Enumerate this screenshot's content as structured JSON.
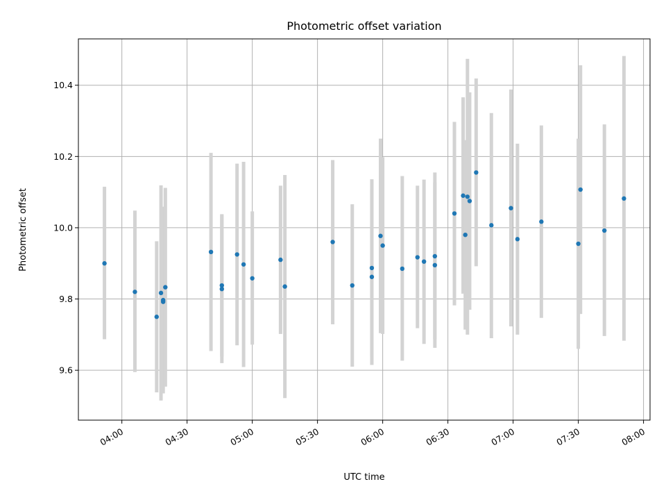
{
  "chart_data": {
    "type": "scatter",
    "title": "Photometric offset variation",
    "xlabel": "UTC time",
    "ylabel": "Photometric offset",
    "x_axis": {
      "kind": "time",
      "range": [
        "03:40",
        "08:03"
      ],
      "ticks": [
        "04:00",
        "04:30",
        "05:00",
        "05:30",
        "06:00",
        "06:30",
        "07:00",
        "07:30",
        "08:00"
      ]
    },
    "y_axis": {
      "range": [
        9.46,
        10.53
      ],
      "ticks": [
        9.6,
        9.8,
        10.0,
        10.2,
        10.4
      ],
      "tick_labels": [
        "9.6",
        "9.8",
        "10.0",
        "10.2",
        "10.4"
      ]
    },
    "grid": true,
    "marker_color": "#1f77b4",
    "errorbar_color": "#d3d3d3",
    "series": [
      {
        "points": [
          {
            "x": "03:52",
            "y": 9.9,
            "low": 9.687,
            "high": 10.115
          },
          {
            "x": "04:06",
            "y": 9.82,
            "low": 9.595,
            "high": 10.048
          },
          {
            "x": "04:16",
            "y": 9.75,
            "low": 9.538,
            "high": 9.962
          },
          {
            "x": "04:18",
            "y": 9.817,
            "low": 9.515,
            "high": 10.119
          },
          {
            "x": "04:19",
            "y": 9.797,
            "low": 9.535,
            "high": 10.059
          },
          {
            "x": "04:19",
            "y": 9.792,
            "low": 9.585,
            "high": 10.002
          },
          {
            "x": "04:20",
            "y": 9.833,
            "low": 9.554,
            "high": 10.112
          },
          {
            "x": "04:41",
            "y": 9.932,
            "low": 9.654,
            "high": 10.21
          },
          {
            "x": "04:46",
            "y": 9.838,
            "low": 9.638,
            "high": 10.038
          },
          {
            "x": "04:46",
            "y": 9.828,
            "low": 9.62,
            "high": 10.036
          },
          {
            "x": "04:53",
            "y": 9.925,
            "low": 9.67,
            "high": 10.18
          },
          {
            "x": "04:56",
            "y": 9.897,
            "low": 9.609,
            "high": 10.185
          },
          {
            "x": "05:00",
            "y": 9.858,
            "low": 9.672,
            "high": 10.046
          },
          {
            "x": "05:13",
            "y": 9.91,
            "low": 9.702,
            "high": 10.118
          },
          {
            "x": "05:15",
            "y": 9.835,
            "low": 9.522,
            "high": 10.148
          },
          {
            "x": "05:37",
            "y": 9.96,
            "low": 9.729,
            "high": 10.19
          },
          {
            "x": "05:46",
            "y": 9.838,
            "low": 9.61,
            "high": 10.066
          },
          {
            "x": "05:55",
            "y": 9.862,
            "low": 9.615,
            "high": 10.108
          },
          {
            "x": "05:55",
            "y": 9.887,
            "low": 9.638,
            "high": 10.136
          },
          {
            "x": "05:59",
            "y": 9.977,
            "low": 9.704,
            "high": 10.25
          },
          {
            "x": "06:00",
            "y": 9.95,
            "low": 9.702,
            "high": 10.198
          },
          {
            "x": "06:09",
            "y": 9.885,
            "low": 9.627,
            "high": 10.145
          },
          {
            "x": "06:16",
            "y": 9.917,
            "low": 9.718,
            "high": 10.118
          },
          {
            "x": "06:19",
            "y": 9.905,
            "low": 9.674,
            "high": 10.135
          },
          {
            "x": "06:24",
            "y": 9.92,
            "low": 9.687,
            "high": 10.155
          },
          {
            "x": "06:24",
            "y": 9.895,
            "low": 9.663,
            "high": 10.127
          },
          {
            "x": "06:33",
            "y": 10.04,
            "low": 9.782,
            "high": 10.297
          },
          {
            "x": "06:37",
            "y": 10.09,
            "low": 9.815,
            "high": 10.366
          },
          {
            "x": "06:38",
            "y": 9.98,
            "low": 9.714,
            "high": 10.246
          },
          {
            "x": "06:39",
            "y": 10.087,
            "low": 9.7,
            "high": 10.474
          },
          {
            "x": "06:40",
            "y": 10.075,
            "low": 9.77,
            "high": 10.38
          },
          {
            "x": "06:43",
            "y": 10.155,
            "low": 9.892,
            "high": 10.419
          },
          {
            "x": "06:50",
            "y": 10.007,
            "low": 9.69,
            "high": 10.322
          },
          {
            "x": "06:59",
            "y": 10.055,
            "low": 9.723,
            "high": 10.388
          },
          {
            "x": "07:02",
            "y": 9.968,
            "low": 9.7,
            "high": 10.236
          },
          {
            "x": "07:13",
            "y": 10.017,
            "low": 9.747,
            "high": 10.287
          },
          {
            "x": "07:30",
            "y": 9.955,
            "low": 9.66,
            "high": 10.25
          },
          {
            "x": "07:31",
            "y": 10.107,
            "low": 9.758,
            "high": 10.456
          },
          {
            "x": "07:42",
            "y": 9.992,
            "low": 9.696,
            "high": 10.29
          },
          {
            "x": "07:51",
            "y": 10.082,
            "low": 9.683,
            "high": 10.482
          }
        ]
      }
    ]
  }
}
